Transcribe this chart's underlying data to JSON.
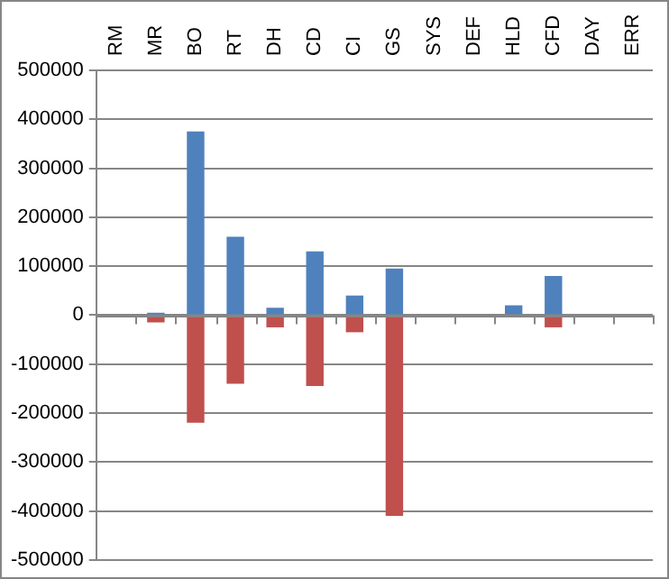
{
  "chart_data": {
    "type": "bar",
    "stacked": true,
    "categories": [
      "RM",
      "MR",
      "BO",
      "RT",
      "DH",
      "CD",
      "CI",
      "GS",
      "SYS",
      "DEF",
      "HLD",
      "CFD",
      "DAY",
      "ERR"
    ],
    "series": [
      {
        "color": "#4f81bd",
        "values": [
          0,
          5000,
          375000,
          160000,
          15000,
          130000,
          40000,
          95000,
          0,
          0,
          20000,
          80000,
          0,
          0
        ]
      },
      {
        "color": "#c0504d",
        "values": [
          0,
          -15000,
          -220000,
          -140000,
          -25000,
          -145000,
          -35000,
          -410000,
          0,
          0,
          0,
          -25000,
          0,
          0
        ]
      }
    ],
    "ylim": [
      -500000,
      500000
    ],
    "yticks": [
      -500000,
      -400000,
      -300000,
      -200000,
      -100000,
      0,
      100000,
      200000,
      300000,
      400000,
      500000
    ],
    "grid": "y",
    "legend": false
  }
}
